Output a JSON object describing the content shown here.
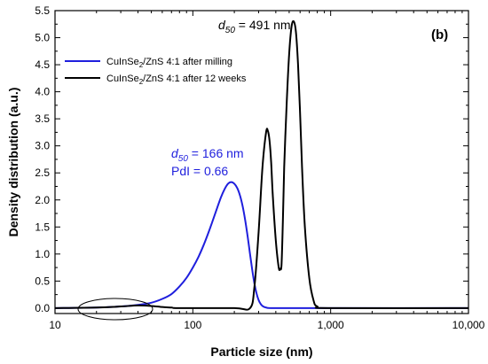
{
  "chart_data": {
    "type": "line",
    "xlabel": "Particle size (nm)",
    "ylabel": "Density distribution (a.u.)",
    "x_scale": "log",
    "xlim": [
      10,
      10000
    ],
    "ylim": [
      -0.1,
      5.5
    ],
    "x_ticks": [
      10,
      100,
      1000,
      10000
    ],
    "x_tick_labels": [
      "10",
      "100",
      "1,000",
      "10,000"
    ],
    "y_ticks": [
      0.0,
      0.5,
      1.0,
      1.5,
      2.0,
      2.5,
      3.0,
      3.5,
      4.0,
      4.5,
      5.0,
      5.5
    ],
    "y_tick_labels": [
      "0.0",
      "0.5",
      "1.0",
      "1.5",
      "2.0",
      "2.5",
      "3.0",
      "3.5",
      "4.0",
      "4.5",
      "5.0",
      "5.5"
    ],
    "panel_label": "(b)",
    "legend_position": "top-left",
    "series": [
      {
        "name_parts": [
          "CuInSe",
          "2",
          "/ZnS 4:1 after milling"
        ],
        "color": "#1f1fdd",
        "x": [
          10,
          20,
          30,
          40,
          50,
          60,
          70,
          80,
          90,
          100,
          110,
          120,
          130,
          140,
          150,
          160,
          170,
          180,
          190,
          200,
          210,
          220,
          230,
          240,
          250,
          260,
          270,
          280,
          290,
          300,
          310,
          320,
          340,
          400,
          1000,
          10000
        ],
        "y": [
          0.0,
          0.01,
          0.03,
          0.06,
          0.1,
          0.17,
          0.26,
          0.4,
          0.56,
          0.75,
          0.95,
          1.17,
          1.4,
          1.63,
          1.85,
          2.05,
          2.2,
          2.3,
          2.33,
          2.3,
          2.22,
          2.08,
          1.88,
          1.62,
          1.32,
          1.0,
          0.7,
          0.45,
          0.27,
          0.15,
          0.08,
          0.04,
          0.01,
          0.0,
          0.0,
          0.0
        ]
      },
      {
        "name_parts": [
          "CuInSe",
          "2",
          "/ZnS 4:1 after 12 weeks"
        ],
        "color": "#000000",
        "x": [
          10,
          20,
          30,
          40,
          50,
          60,
          70,
          80,
          200,
          260,
          280,
          300,
          320,
          340,
          350,
          360,
          370,
          380,
          400,
          420,
          430,
          440,
          450,
          460,
          480,
          500,
          520,
          540,
          560,
          580,
          600,
          620,
          650,
          700,
          750,
          800,
          1000,
          10000
        ],
        "y": [
          0.0,
          0.01,
          0.03,
          0.05,
          0.04,
          0.02,
          0.01,
          0.0,
          0.0,
          0.0,
          0.4,
          1.4,
          2.6,
          3.25,
          3.28,
          3.1,
          2.7,
          2.1,
          1.25,
          0.75,
          0.73,
          0.8,
          1.6,
          2.6,
          3.8,
          4.7,
          5.2,
          5.3,
          5.1,
          4.5,
          3.6,
          2.6,
          1.5,
          0.55,
          0.15,
          0.03,
          0.0,
          0.0
        ]
      }
    ],
    "annotations": {
      "black_d50": {
        "symbol": "d",
        "subscript": "50",
        "value": " = 491 nm"
      },
      "blue_d50": {
        "symbol": "d",
        "subscript": "50",
        "value": " = 166 nm"
      },
      "blue_pdi": "PdI = 0.66"
    }
  }
}
